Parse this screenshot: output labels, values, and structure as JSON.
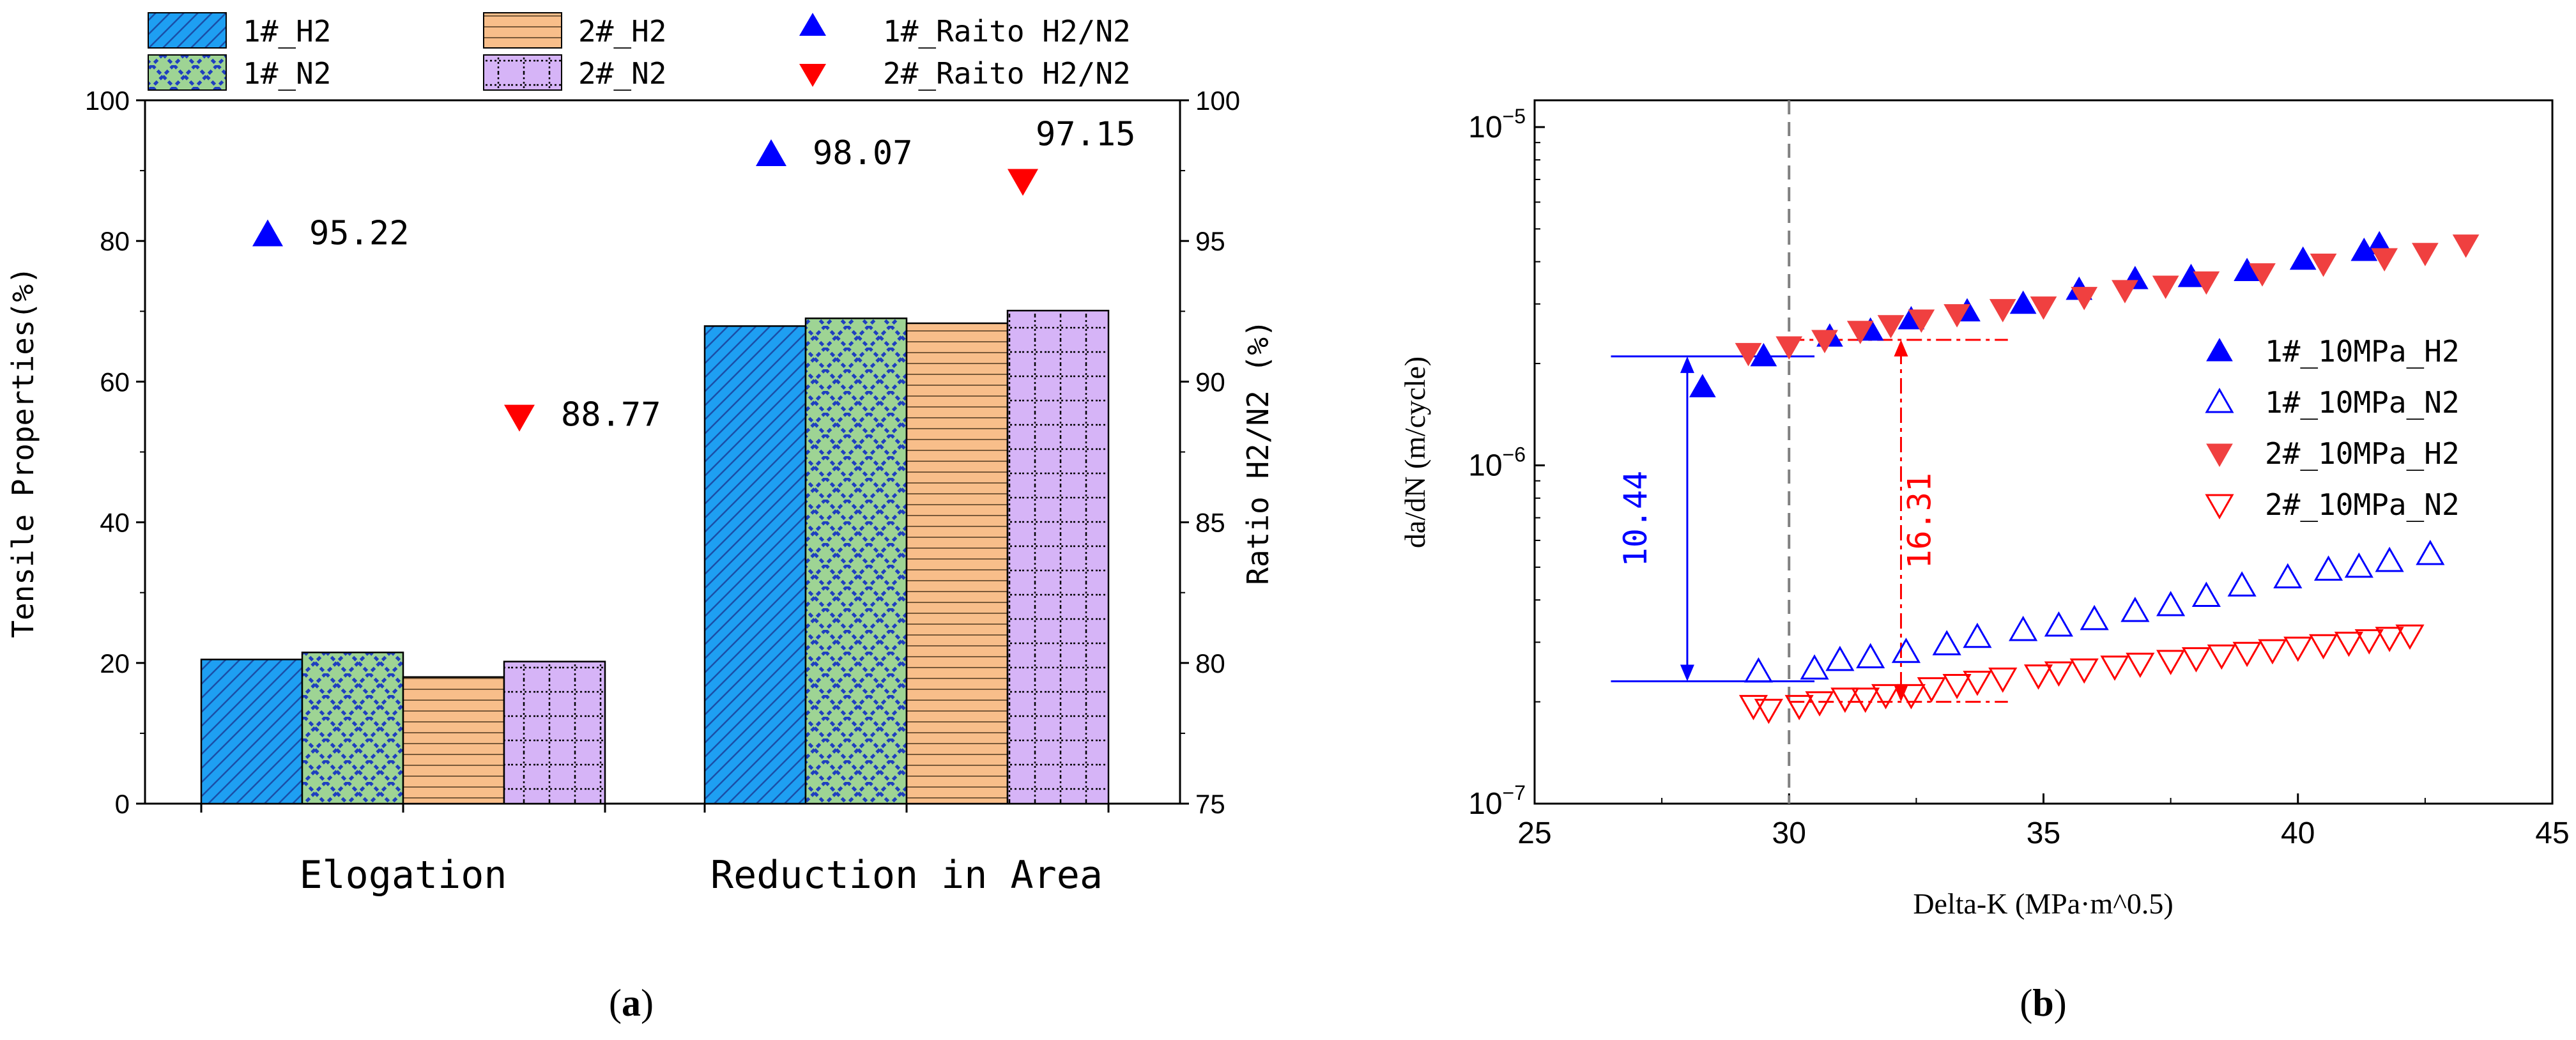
{
  "chart_data": [
    {
      "panel_label_prefix": "(",
      "panel_label_letter": "a",
      "panel_label_suffix": ")",
      "type": "bar",
      "categories": [
        "Elogation",
        "Reduction in Area"
      ],
      "series": [
        {
          "name": "1#_H2",
          "values": [
            20.5,
            67.9
          ],
          "color": "#1E9FF2",
          "pattern": "diagonal"
        },
        {
          "name": "1#_N2",
          "values": [
            21.5,
            69.0
          ],
          "color": "#9ED494",
          "pattern": "crosshatch-blue"
        },
        {
          "name": "2#_H2",
          "values": [
            18.0,
            68.3
          ],
          "color": "#F8BE8A",
          "pattern": "horizontal"
        },
        {
          "name": "2#_N2",
          "values": [
            20.2,
            70.1
          ],
          "color": "#D6B4F7",
          "pattern": "dotted-grid"
        }
      ],
      "ylabel": "Tensile Properties(%)",
      "ylim": [
        0,
        100
      ],
      "yticks": [
        "0",
        "20",
        "40",
        "60",
        "80",
        "100"
      ],
      "y2label": "Ratio H2/N2 (%)",
      "y2lim": [
        75,
        100
      ],
      "y2ticks": [
        "75",
        "80",
        "85",
        "90",
        "95",
        "100"
      ],
      "ratio_series": [
        {
          "name": "1#_Raito H2/N2",
          "values": [
            95.22,
            98.07
          ],
          "labels": [
            "95.22",
            "98.07"
          ],
          "marker": "triangle-up",
          "color": "#0000FF"
        },
        {
          "name": "2#_Raito H2/N2",
          "values": [
            88.77,
            97.15
          ],
          "labels": [
            "88.77",
            "97.15"
          ],
          "marker": "triangle-down",
          "color": "#FF0000"
        }
      ]
    },
    {
      "panel_label_prefix": "(",
      "panel_label_letter": "b",
      "panel_label_suffix": ")",
      "type": "scatter",
      "xlabel": "Delta-K (MPa·m^0.5)",
      "ylabel": "da/dN (m/cycle)",
      "xlim": [
        25,
        45
      ],
      "xticks": [
        "25",
        "30",
        "35",
        "40",
        "45"
      ],
      "ylim": [
        1e-07,
        1.2e-05
      ],
      "yscale": "log",
      "yticks": [
        {
          "value": 1e-07,
          "base": "10",
          "exp": "−7"
        },
        {
          "value": 1e-06,
          "base": "10",
          "exp": "−6"
        },
        {
          "value": 1e-05,
          "base": "10",
          "exp": "−5"
        }
      ],
      "legend_position": "right",
      "series": [
        {
          "name": "1#_10MPa_H2",
          "marker": "triangle-up",
          "filled": true,
          "color": "#0000FF",
          "points": [
            [
              28.3,
              1.7e-06
            ],
            [
              29.5,
              2.1e-06
            ],
            [
              30.8,
              2.4e-06
            ],
            [
              31.6,
              2.5e-06
            ],
            [
              32.4,
              2.7e-06
            ],
            [
              33.5,
              2.85e-06
            ],
            [
              34.6,
              3e-06
            ],
            [
              35.7,
              3.3e-06
            ],
            [
              36.8,
              3.55e-06
            ],
            [
              37.9,
              3.6e-06
            ],
            [
              39.0,
              3.75e-06
            ],
            [
              40.1,
              4.05e-06
            ],
            [
              41.3,
              4.3e-06
            ],
            [
              41.6,
              4.5e-06
            ]
          ]
        },
        {
          "name": "1#_10MPa_N2",
          "marker": "triangle-up",
          "filled": false,
          "color": "#0000FF",
          "points": [
            [
              29.4,
              2.45e-07
            ],
            [
              30.5,
              2.5e-07
            ],
            [
              31.0,
              2.65e-07
            ],
            [
              31.6,
              2.7e-07
            ],
            [
              32.3,
              2.8e-07
            ],
            [
              33.1,
              2.95e-07
            ],
            [
              33.7,
              3.1e-07
            ],
            [
              34.6,
              3.25e-07
            ],
            [
              35.3,
              3.35e-07
            ],
            [
              36.0,
              3.5e-07
            ],
            [
              36.8,
              3.7e-07
            ],
            [
              37.5,
              3.85e-07
            ],
            [
              38.2,
              4.1e-07
            ],
            [
              38.9,
              4.4e-07
            ],
            [
              39.8,
              4.65e-07
            ],
            [
              40.6,
              4.9e-07
            ],
            [
              41.2,
              5e-07
            ],
            [
              41.8,
              5.2e-07
            ],
            [
              42.6,
              5.45e-07
            ]
          ]
        },
        {
          "name": "2#_10MPa_H2",
          "marker": "triangle-down",
          "filled": true,
          "color": "#F04040",
          "points": [
            [
              29.2,
              2.15e-06
            ],
            [
              30.0,
              2.25e-06
            ],
            [
              30.7,
              2.35e-06
            ],
            [
              31.4,
              2.5e-06
            ],
            [
              32.0,
              2.6e-06
            ],
            [
              32.6,
              2.7e-06
            ],
            [
              33.3,
              2.8e-06
            ],
            [
              34.2,
              2.9e-06
            ],
            [
              35.0,
              2.95e-06
            ],
            [
              35.8,
              3.15e-06
            ],
            [
              36.6,
              3.3e-06
            ],
            [
              37.4,
              3.4e-06
            ],
            [
              38.2,
              3.5e-06
            ],
            [
              39.3,
              3.7e-06
            ],
            [
              40.5,
              3.95e-06
            ],
            [
              41.7,
              4.1e-06
            ],
            [
              42.5,
              4.25e-06
            ],
            [
              43.3,
              4.5e-06
            ]
          ]
        },
        {
          "name": "2#_10MPa_N2",
          "marker": "triangle-down",
          "filled": false,
          "color": "#FF0000",
          "points": [
            [
              29.3,
              1.95e-07
            ],
            [
              29.6,
              1.9e-07
            ],
            [
              30.2,
              1.95e-07
            ],
            [
              30.6,
              2e-07
            ],
            [
              31.1,
              2.05e-07
            ],
            [
              31.5,
              2.05e-07
            ],
            [
              31.9,
              2.1e-07
            ],
            [
              32.4,
              2.1e-07
            ],
            [
              32.8,
              2.2e-07
            ],
            [
              33.3,
              2.25e-07
            ],
            [
              33.7,
              2.3e-07
            ],
            [
              34.2,
              2.35e-07
            ],
            [
              34.9,
              2.4e-07
            ],
            [
              35.3,
              2.45e-07
            ],
            [
              35.8,
              2.5e-07
            ],
            [
              36.4,
              2.55e-07
            ],
            [
              36.9,
              2.6e-07
            ],
            [
              37.5,
              2.65e-07
            ],
            [
              38.0,
              2.7e-07
            ],
            [
              38.5,
              2.75e-07
            ],
            [
              39.0,
              2.8e-07
            ],
            [
              39.5,
              2.85e-07
            ],
            [
              40.0,
              2.9e-07
            ],
            [
              40.5,
              2.95e-07
            ],
            [
              41.0,
              3e-07
            ],
            [
              41.4,
              3.05e-07
            ],
            [
              41.8,
              3.1e-07
            ],
            [
              42.2,
              3.15e-07
            ]
          ]
        }
      ],
      "reference_line_x": 30,
      "annotations": [
        {
          "text": "10.44",
          "color": "#0000FF",
          "x": 28,
          "y_top": 2.1e-06,
          "y_bottom": 2.3e-07,
          "line_x0": 26.5,
          "line_x1": 30.5,
          "style": "solid"
        },
        {
          "text": "16.31",
          "color": "#FF0000",
          "x": 32.2,
          "y_top": 2.35e-06,
          "y_bottom": 2e-07,
          "line_x0": 30.0,
          "line_x1": 34.3,
          "style": "dashdot"
        }
      ]
    }
  ]
}
